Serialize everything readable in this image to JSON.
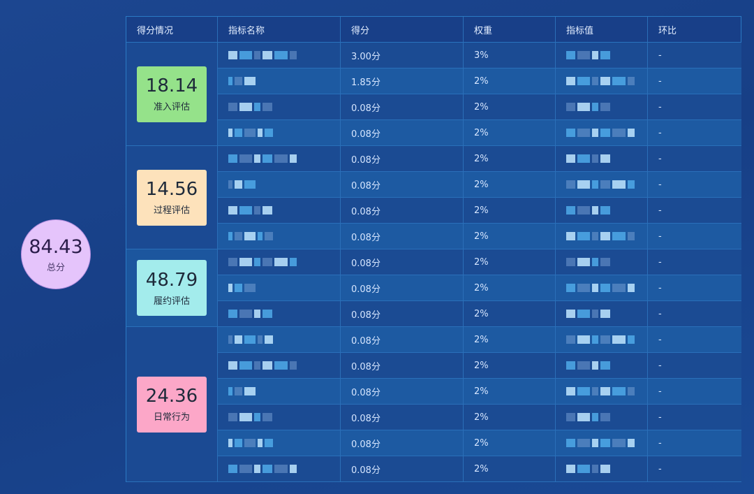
{
  "total": {
    "value": "84.43",
    "label": "总分",
    "color": "#e5c4fb"
  },
  "headers": [
    "得分情况",
    "指标名称",
    "得分",
    "权重",
    "指标值",
    "环比"
  ],
  "groups": [
    {
      "value": "18.14",
      "label": "准入评估",
      "color": "#95e28a",
      "rows": 4
    },
    {
      "value": "14.56",
      "label": "过程评估",
      "color": "#fde2bb",
      "rows": 4
    },
    {
      "value": "48.79",
      "label": "履约评估",
      "color": "#a3ecec",
      "rows": 3
    },
    {
      "value": "24.36",
      "label": "日常行为",
      "color": "#fca7c8",
      "rows": 6
    }
  ],
  "rows": [
    {
      "score": "3.00分",
      "weight": "3%",
      "change": "-"
    },
    {
      "score": "1.85分",
      "weight": "2%",
      "change": "-"
    },
    {
      "score": "0.08分",
      "weight": "2%",
      "change": "-"
    },
    {
      "score": "0.08分",
      "weight": "2%",
      "change": "-"
    },
    {
      "score": "0.08分",
      "weight": "2%",
      "change": "-"
    },
    {
      "score": "0.08分",
      "weight": "2%",
      "change": "-"
    },
    {
      "score": "0.08分",
      "weight": "2%",
      "change": "-"
    },
    {
      "score": "0.08分",
      "weight": "2%",
      "change": "-"
    },
    {
      "score": "0.08分",
      "weight": "2%",
      "change": "-"
    },
    {
      "score": "0.08分",
      "weight": "2%",
      "change": "-"
    },
    {
      "score": "0.08分",
      "weight": "2%",
      "change": "-"
    },
    {
      "score": "0.08分",
      "weight": "2%",
      "change": "-"
    },
    {
      "score": "0.08分",
      "weight": "2%",
      "change": "-"
    },
    {
      "score": "0.08分",
      "weight": "2%",
      "change": "-"
    },
    {
      "score": "0.08分",
      "weight": "2%",
      "change": "-"
    },
    {
      "score": "0.08分",
      "weight": "2%",
      "change": "-"
    },
    {
      "score": "0.08分",
      "weight": "2%",
      "change": "-"
    }
  ]
}
